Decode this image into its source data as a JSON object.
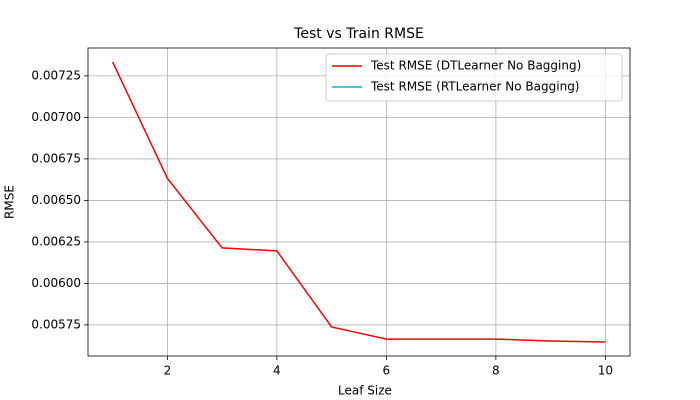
{
  "chart_data": {
    "type": "line",
    "title": "Test vs Train RMSE",
    "x_label": "Leaf Size",
    "y_label": "RMSE",
    "x": [
      1,
      2,
      3,
      4,
      5,
      6,
      7,
      8,
      9,
      10
    ],
    "series": [
      {
        "name": "Test RMSE (DTLearner No Bagging)",
        "color": "#ff0000",
        "values": [
          0.007334,
          0.006633,
          0.006214,
          0.006196,
          0.005738,
          0.005665,
          0.005665,
          0.005665,
          0.005653,
          0.005647
        ]
      },
      {
        "name": "Test RMSE (RTLearner No Bagging)",
        "color": "#00bfbf",
        "values": [
          null,
          null,
          null,
          null,
          null,
          null,
          null,
          null,
          null,
          null
        ]
      }
    ],
    "xlim": [
      0.55,
      10.45
    ],
    "xticks": [
      2,
      4,
      6,
      8,
      10
    ],
    "ylim": [
      0.005563,
      0.007418
    ],
    "yticks": [
      0.00575,
      {
        "value": 0.006,
        "label": "0.00600"
      },
      0.00625,
      {
        "value": 0.0065,
        "label": "0.00650"
      },
      0.00675,
      {
        "value": 0.007,
        "label": "0.00700"
      },
      0.00725
    ],
    "grid": true,
    "legend": "upper right"
  }
}
